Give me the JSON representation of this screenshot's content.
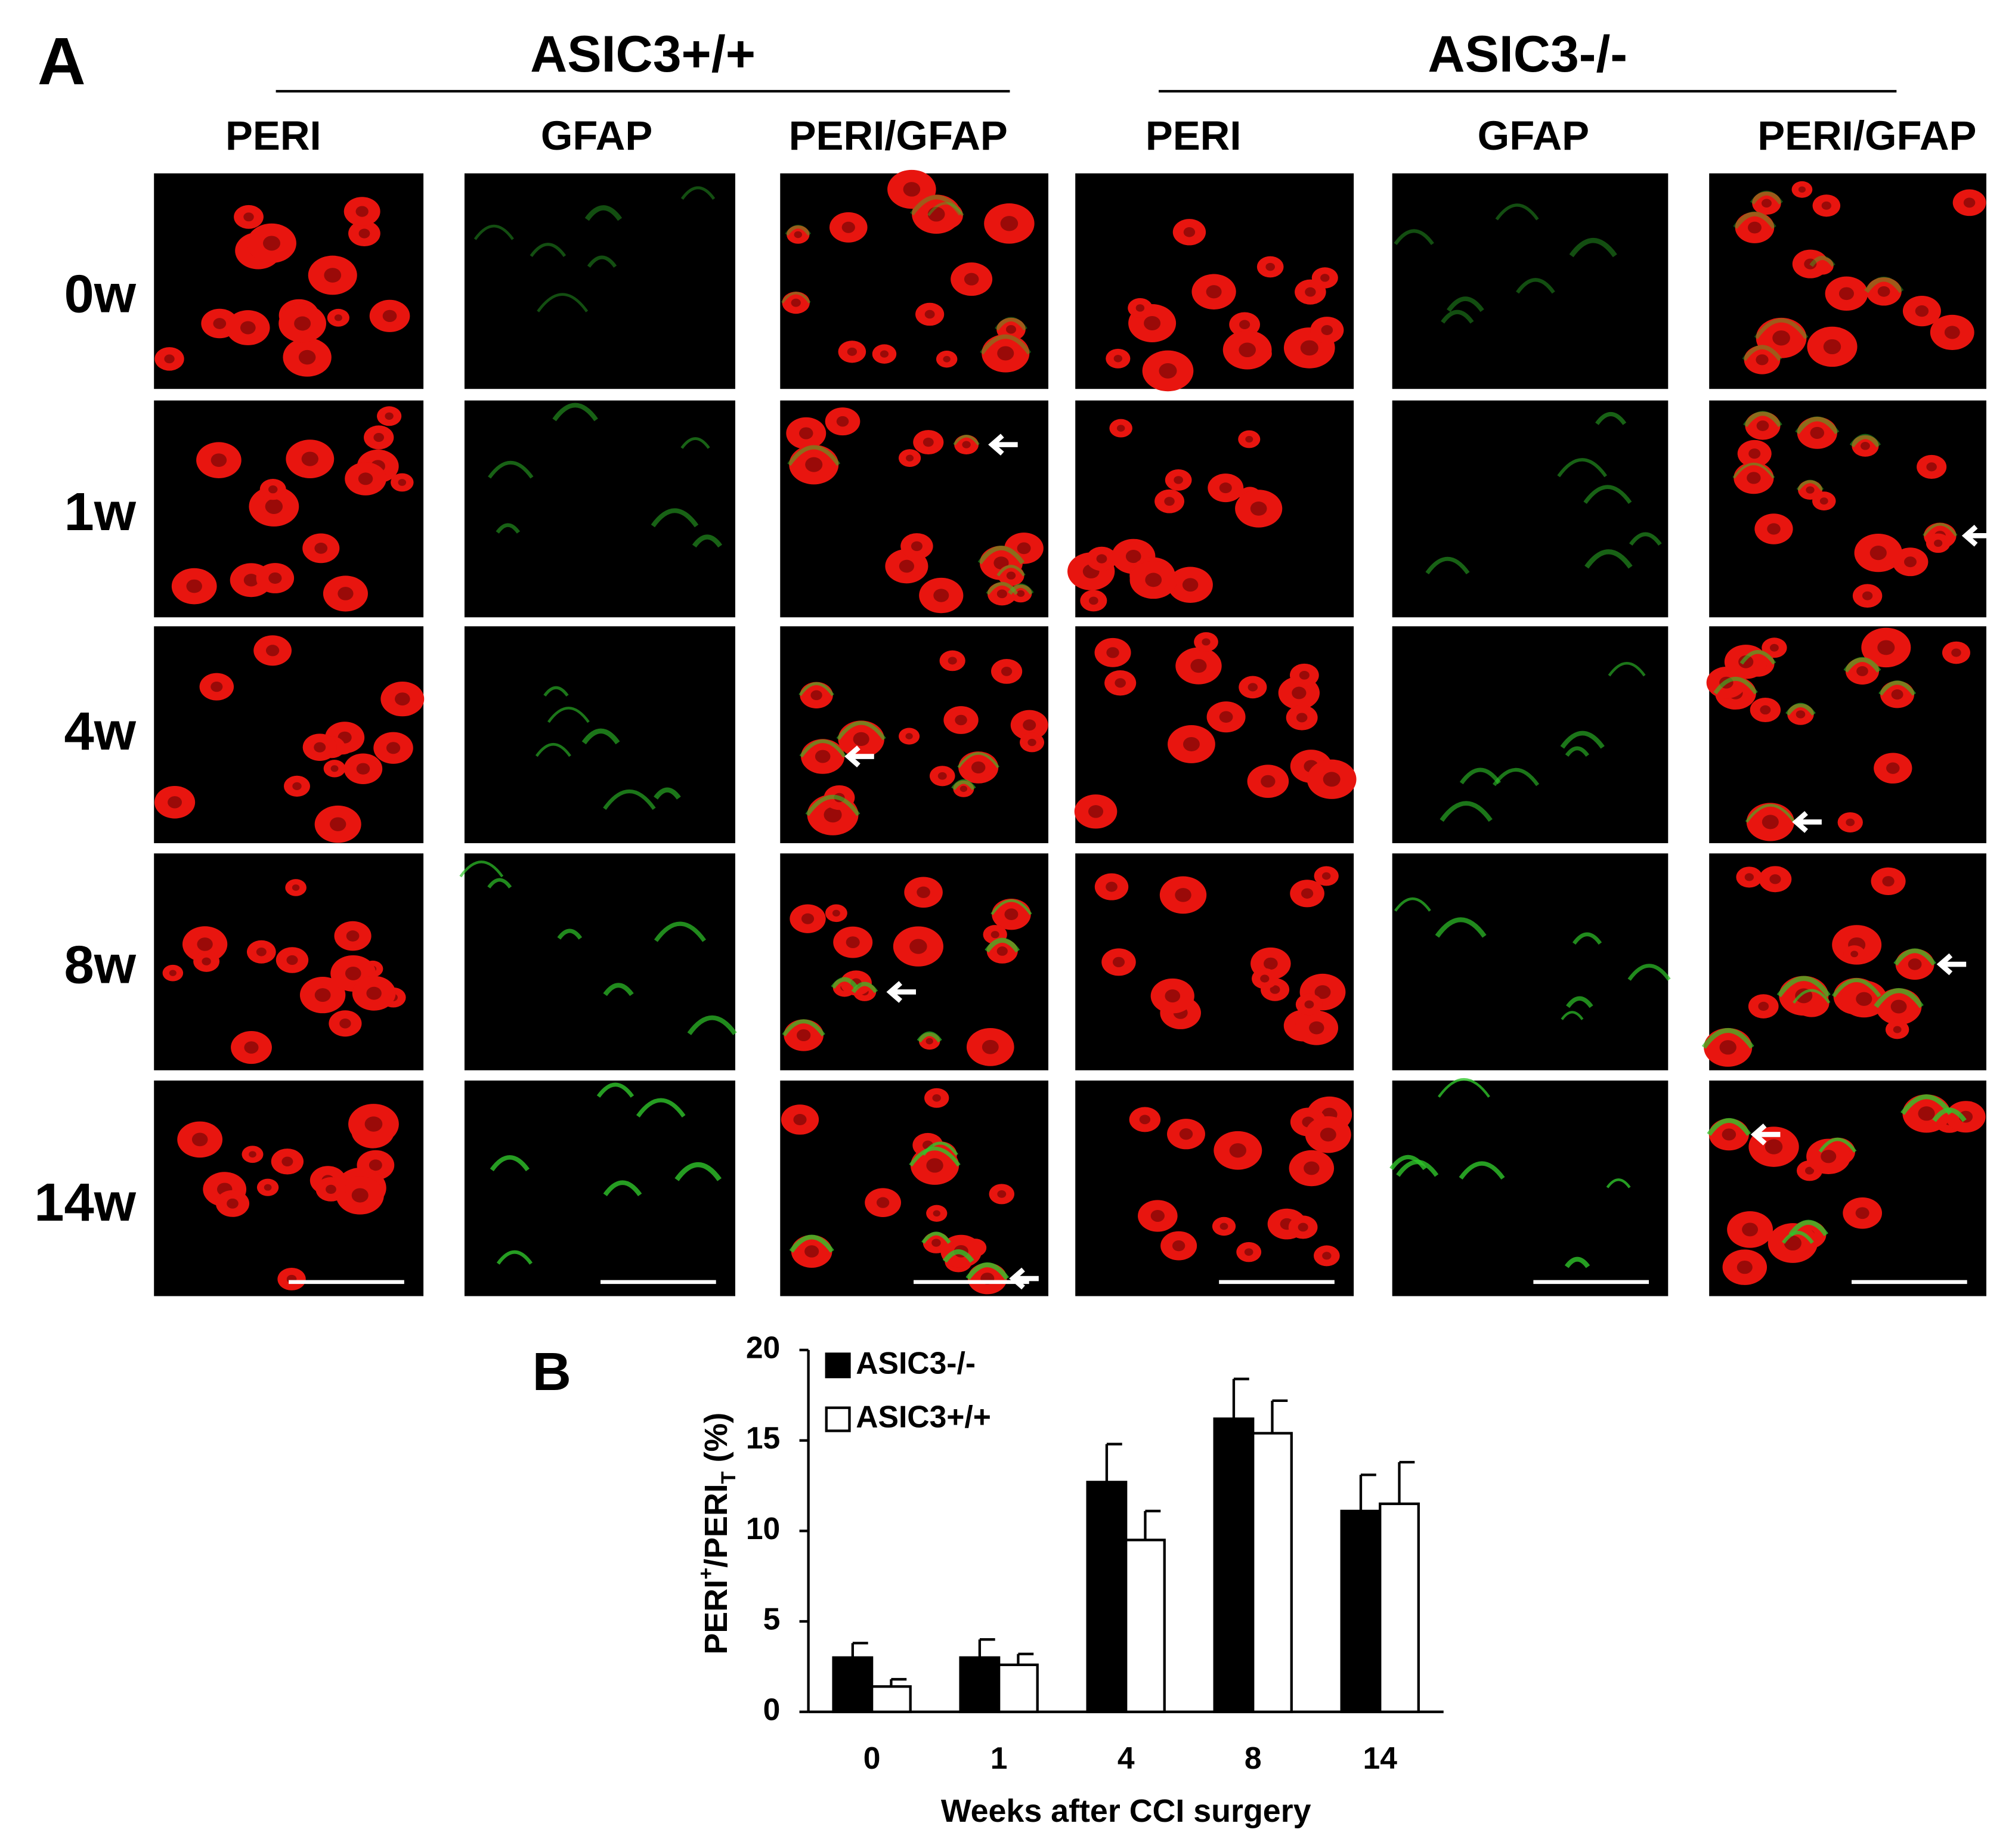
{
  "panel_a": {
    "label": "A",
    "groups": [
      "ASIC3+/+",
      "ASIC3-/-"
    ],
    "columns": [
      "PERI",
      "GFAP",
      "PERI/GFAP",
      "PERI",
      "GFAP",
      "PERI/GFAP"
    ],
    "rows": [
      "0w",
      "1w",
      "4w",
      "8w",
      "14w"
    ]
  },
  "panel_b_label": "B",
  "chart_data": {
    "type": "bar",
    "y_label_parts": [
      "PERI",
      "+",
      "/PERI",
      "T",
      " (%)"
    ],
    "x_label": "Weeks after CCI surgery",
    "categories": [
      "0",
      "1",
      "4",
      "8",
      "14"
    ],
    "series": [
      {
        "name": "ASIC3-/-",
        "color": "#000000",
        "values": [
          3.0,
          3.0,
          12.7,
          16.2,
          11.1
        ],
        "errors": [
          0.8,
          1.0,
          2.1,
          2.2,
          2.0
        ]
      },
      {
        "name": "ASIC3+/+",
        "color": "#ffffff",
        "values": [
          1.4,
          2.6,
          9.5,
          15.4,
          11.5
        ],
        "errors": [
          0.4,
          0.6,
          1.6,
          1.8,
          2.3
        ]
      }
    ],
    "ylim": [
      0,
      20
    ],
    "yticks": [
      0,
      5,
      10,
      15,
      20
    ],
    "legend": "upper left",
    "grid": false
  }
}
